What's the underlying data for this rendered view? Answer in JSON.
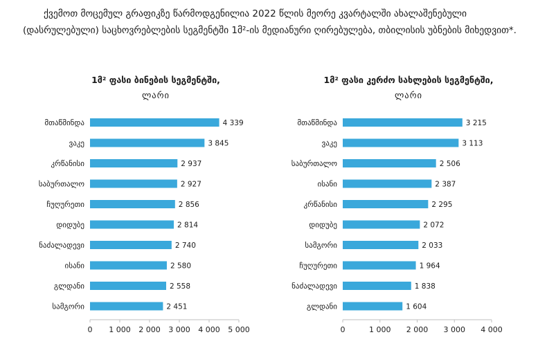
{
  "intro_text": "ქვემოთ მოცემულ გრაფიკზე წარმოდგენილია 2022 წლის მეორე კვარტალში ახალაშენებული (დასრულებული) საცხოვრებლების სეგმენტში 1მ²-ის მედიანური ღირებულება, თბილისის უბნების მიხედვით*.",
  "colors": {
    "bar": "#3aa8db",
    "axis": "#bfbfbf",
    "text": "#1a1a1a"
  },
  "chart_data": [
    {
      "type": "bar",
      "orientation": "horizontal",
      "title_line1": "1მ² ფასი ბინების სეგმენტში,",
      "title_line2": "ლარი",
      "categories": [
        "მთაწმინდა",
        "ვაკე",
        "კრწანისი",
        "საბურთალო",
        "ჩუღურეთი",
        "დიდუბე",
        "ნაძალადევი",
        "ისანი",
        "გლდანი",
        "სამგორი"
      ],
      "values": [
        4339,
        3845,
        2937,
        2927,
        2856,
        2814,
        2740,
        2580,
        2558,
        2451
      ],
      "value_labels": [
        "4 339",
        "3 845",
        "2 937",
        "2 927",
        "2 856",
        "2 814",
        "2 740",
        "2 580",
        "2 558",
        "2 451"
      ],
      "xlim": [
        0,
        5000
      ],
      "ticks": [
        0,
        1000,
        2000,
        3000,
        4000,
        5000
      ],
      "tick_labels": [
        "0",
        "1 000",
        "2 000",
        "3 000",
        "4 000",
        "5 000"
      ]
    },
    {
      "type": "bar",
      "orientation": "horizontal",
      "title_line1": "1მ² ფასი კერძო სახლების სეგმენტში,",
      "title_line2": "ლარი",
      "categories": [
        "მთაწმინდა",
        "ვაკე",
        "საბურთალო",
        "ისანი",
        "კრწანისი",
        "დიდუბე",
        "სამგორი",
        "ჩუღურეთი",
        "ნაძალადევი",
        "გლდანი"
      ],
      "values": [
        3215,
        3113,
        2506,
        2387,
        2295,
        2072,
        2033,
        1964,
        1838,
        1604
      ],
      "value_labels": [
        "3 215",
        "3 113",
        "2 506",
        "2 387",
        "2 295",
        "2 072",
        "2 033",
        "1 964",
        "1 838",
        "1 604"
      ],
      "xlim": [
        0,
        4000
      ],
      "ticks": [
        0,
        1000,
        2000,
        3000,
        4000
      ],
      "tick_labels": [
        "0",
        "1 000",
        "2 000",
        "3 000",
        "4 000"
      ]
    }
  ]
}
